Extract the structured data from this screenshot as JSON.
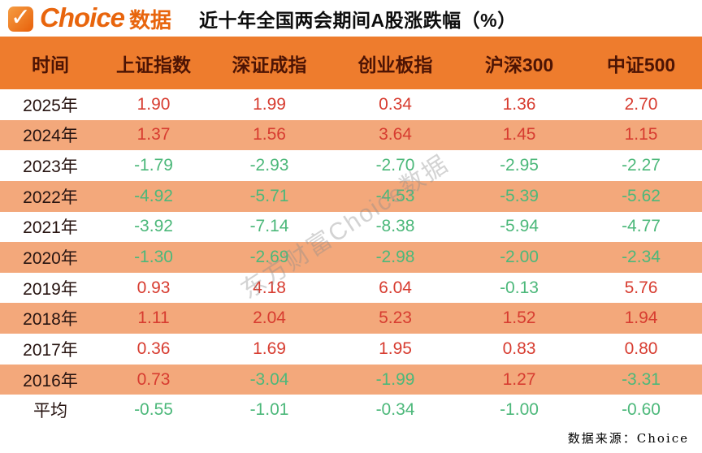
{
  "logo": {
    "brand": "Choice",
    "suffix": "数据",
    "check_icon": "check-icon"
  },
  "title": "近十年全国两会期间A股涨跌幅（%）",
  "watermark_text": "东方财富Choice数据",
  "footer": {
    "source_label": "数据来源：Choice"
  },
  "colors": {
    "header_bg": "#ee7c2d",
    "row_alt_bg": "#f3a87b",
    "positive_red": "#d73c30",
    "negative_green": "#4cb87a",
    "header_text": "#4d1404",
    "brand_orange": "#e8650d"
  },
  "chart_data": {
    "type": "table",
    "title": "近十年全国两会期间A股涨跌幅（%）",
    "columns": [
      "时间",
      "上证指数",
      "深证成指",
      "创业板指",
      "沪深300",
      "中证500"
    ],
    "rows": [
      [
        "2025年",
        "1.90",
        "1.99",
        "0.34",
        "1.36",
        "2.70"
      ],
      [
        "2024年",
        "1.37",
        "1.56",
        "3.64",
        "1.45",
        "1.15"
      ],
      [
        "2023年",
        "-1.79",
        "-2.93",
        "-2.70",
        "-2.95",
        "-2.27"
      ],
      [
        "2022年",
        "-4.92",
        "-5.71",
        "-4.53",
        "-5.39",
        "-5.62"
      ],
      [
        "2021年",
        "-3.92",
        "-7.14",
        "-8.38",
        "-5.94",
        "-4.77"
      ],
      [
        "2020年",
        "-1.30",
        "-2.69",
        "-2.98",
        "-2.00",
        "-2.34"
      ],
      [
        "2019年",
        "0.93",
        "4.18",
        "6.04",
        "-0.13",
        "5.76"
      ],
      [
        "2018年",
        "1.11",
        "2.04",
        "5.23",
        "1.52",
        "1.94"
      ],
      [
        "2017年",
        "0.36",
        "1.69",
        "1.95",
        "0.83",
        "0.80"
      ],
      [
        "2016年",
        "0.73",
        "-3.04",
        "-1.99",
        "1.27",
        "-3.31"
      ],
      [
        "平均",
        "-0.55",
        "-1.01",
        "-0.34",
        "-1.00",
        "-0.60"
      ]
    ],
    "value_color_rule": "positive=red, negative=green",
    "row_striping": "white / light-orange alternating starting white",
    "source": "数据来源：Choice"
  }
}
